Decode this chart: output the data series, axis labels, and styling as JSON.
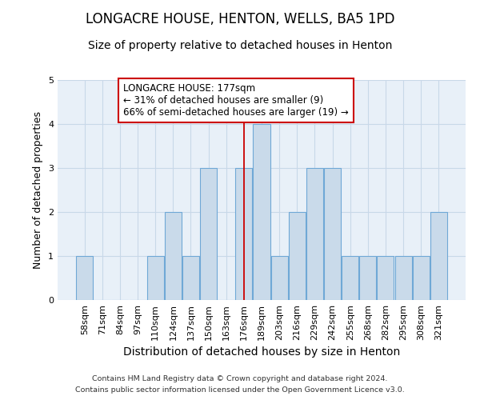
{
  "title": "LONGACRE HOUSE, HENTON, WELLS, BA5 1PD",
  "subtitle": "Size of property relative to detached houses in Henton",
  "xlabel": "Distribution of detached houses by size in Henton",
  "ylabel": "Number of detached properties",
  "categories": [
    "58sqm",
    "71sqm",
    "84sqm",
    "97sqm",
    "110sqm",
    "124sqm",
    "137sqm",
    "150sqm",
    "163sqm",
    "176sqm",
    "189sqm",
    "203sqm",
    "216sqm",
    "229sqm",
    "242sqm",
    "255sqm",
    "268sqm",
    "282sqm",
    "295sqm",
    "308sqm",
    "321sqm"
  ],
  "values": [
    1,
    0,
    0,
    0,
    1,
    2,
    1,
    3,
    0,
    3,
    4,
    1,
    2,
    3,
    3,
    1,
    1,
    1,
    1,
    1,
    2
  ],
  "bar_color": "#c9daea",
  "bar_edge_color": "#6fa8d6",
  "highlight_line_index": 9,
  "highlight_line_color": "#cc0000",
  "annotation_title": "LONGACRE HOUSE: 177sqm",
  "annotation_line1": "← 31% of detached houses are smaller (9)",
  "annotation_line2": "66% of semi-detached houses are larger (19) →",
  "annotation_box_color": "#ffffff",
  "annotation_box_edge_color": "#cc0000",
  "ylim": [
    0,
    5
  ],
  "yticks": [
    0,
    1,
    2,
    3,
    4,
    5
  ],
  "grid_color": "#c8d8e8",
  "background_color": "#e8f0f8",
  "footer1": "Contains HM Land Registry data © Crown copyright and database right 2024.",
  "footer2": "Contains public sector information licensed under the Open Government Licence v3.0.",
  "title_fontsize": 12,
  "subtitle_fontsize": 10,
  "tick_fontsize": 8,
  "ylabel_fontsize": 9,
  "xlabel_fontsize": 10
}
